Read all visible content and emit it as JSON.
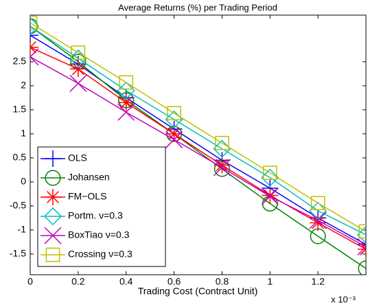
{
  "chart_data": {
    "type": "line",
    "title": "Average Returns (%) per Trading Period",
    "xlabel": "Trading Cost (Contract Unit)",
    "x_multiplier": "x 10⁻³",
    "x": [
      0,
      0.2,
      0.4,
      0.6,
      0.8,
      1.0,
      1.2,
      1.4
    ],
    "xlim": [
      0,
      1.4
    ],
    "xticks": [
      0,
      0.2,
      0.4,
      0.6,
      0.8,
      1,
      1.2
    ],
    "ylim": [
      -1.93,
      3.47
    ],
    "yticks": [
      -1.5,
      -1,
      -0.5,
      0,
      0.5,
      1,
      1.5,
      2,
      2.5
    ],
    "legend": "lower left",
    "series": [
      {
        "name": "OLS",
        "color": "#0000ff",
        "marker": "plus",
        "values": [
          3.05,
          2.45,
          1.75,
          1.1,
          0.45,
          -0.13,
          -0.75,
          -1.3
        ]
      },
      {
        "name": "Johansen",
        "color": "#008000",
        "marker": "circle",
        "values": [
          3.24,
          2.5,
          1.7,
          1.0,
          0.27,
          -0.45,
          -1.13,
          -1.8
        ]
      },
      {
        "name": "FM−OLS",
        "color": "#ff0000",
        "marker": "asterisk",
        "values": [
          2.8,
          2.35,
          1.65,
          1.0,
          0.35,
          -0.28,
          -0.85,
          -1.4
        ]
      },
      {
        "name": "Portm. ν=0.3",
        "color": "#00bfbf",
        "marker": "diamond",
        "values": [
          3.24,
          2.57,
          1.9,
          1.3,
          0.69,
          0.09,
          -0.6,
          -1.1
        ]
      },
      {
        "name": "BoxTiao ν=0.3",
        "color": "#bf00bf",
        "marker": "x",
        "values": [
          2.6,
          2.05,
          1.45,
          0.88,
          0.3,
          -0.3,
          -0.8,
          -1.35
        ]
      },
      {
        "name": "Crossing ν=0.3",
        "color": "#bfbf00",
        "marker": "square",
        "values": [
          3.31,
          2.69,
          2.07,
          1.43,
          0.81,
          0.19,
          -0.44,
          -1.03
        ]
      }
    ]
  }
}
